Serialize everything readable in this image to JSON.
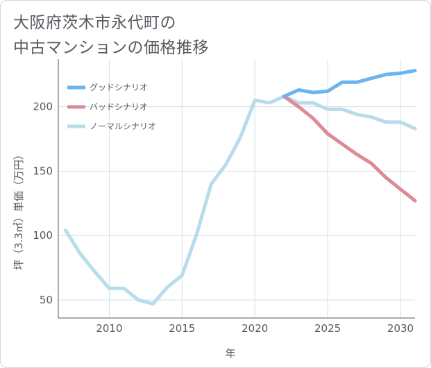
{
  "chart_data": {
    "type": "line",
    "title_lines": [
      "大阪府茨木市永代町の",
      "中古マンションの価格推移"
    ],
    "xlabel": "年",
    "ylabel": "坪（3.3㎡）単価（万円）",
    "xlim": [
      2006.5,
      2031
    ],
    "ylim": [
      36,
      237
    ],
    "x_ticks": [
      2010,
      2015,
      2020,
      2025,
      2030
    ],
    "y_ticks": [
      50,
      100,
      150,
      200
    ],
    "grid": true,
    "legend_position": "top-left",
    "series": [
      {
        "name": "グッドシナリオ",
        "color": "#6cb4ee",
        "points": [
          [
            2022,
            208
          ],
          [
            2023,
            213
          ],
          [
            2024,
            211
          ],
          [
            2025,
            212
          ],
          [
            2026,
            219
          ],
          [
            2027,
            219
          ],
          [
            2028,
            222
          ],
          [
            2029,
            225
          ],
          [
            2030,
            226
          ],
          [
            2031,
            228
          ]
        ]
      },
      {
        "name": "バッドシナリオ",
        "color": "#dd8a95",
        "points": [
          [
            2022,
            208
          ],
          [
            2023,
            200
          ],
          [
            2024,
            191
          ],
          [
            2025,
            179
          ],
          [
            2026,
            171
          ],
          [
            2027,
            163
          ],
          [
            2028,
            156
          ],
          [
            2029,
            145
          ],
          [
            2030,
            136
          ],
          [
            2031,
            127
          ]
        ]
      },
      {
        "name": "ノーマルシナリオ",
        "color": "#b7dcea",
        "points": [
          [
            2007,
            104
          ],
          [
            2008,
            86
          ],
          [
            2009,
            72
          ],
          [
            2010,
            59
          ],
          [
            2011,
            59
          ],
          [
            2012,
            50
          ],
          [
            2013,
            47
          ],
          [
            2014,
            60
          ],
          [
            2015,
            69
          ],
          [
            2016,
            101
          ],
          [
            2017,
            140
          ],
          [
            2018,
            155
          ],
          [
            2019,
            176
          ],
          [
            2020,
            205
          ],
          [
            2021,
            203
          ],
          [
            2022,
            208
          ],
          [
            2023,
            203
          ],
          [
            2024,
            203
          ],
          [
            2025,
            198
          ],
          [
            2026,
            198
          ],
          [
            2027,
            194
          ],
          [
            2028,
            192
          ],
          [
            2029,
            188
          ],
          [
            2030,
            188
          ],
          [
            2031,
            183
          ]
        ]
      }
    ]
  }
}
